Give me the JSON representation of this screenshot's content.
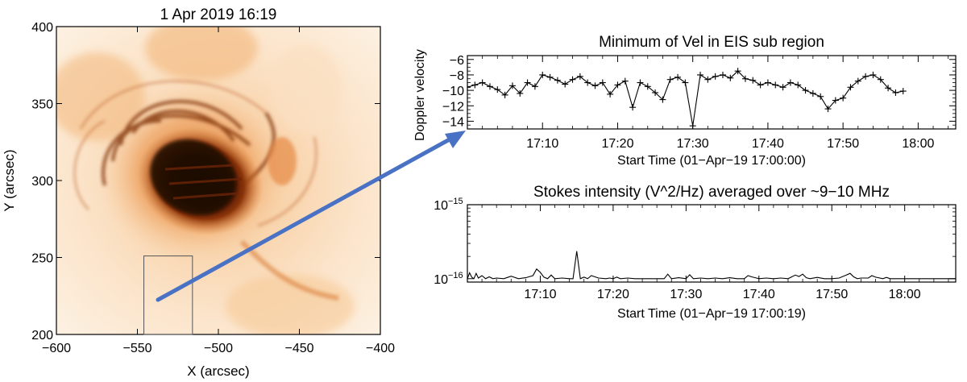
{
  "image_panel": {
    "title": "1 Apr 2019 16:19",
    "xlabel": "X (arcsec)",
    "ylabel": "Y (arcsec)",
    "xticks": [
      -600,
      -550,
      -500,
      -450,
      -400
    ],
    "yticks": [
      200,
      250,
      300,
      350,
      400
    ],
    "xlim": [
      -600,
      -400
    ],
    "ylim": [
      200,
      400
    ],
    "subregion": {
      "x0": -546,
      "x1": -516,
      "y0": 200,
      "y1": 251
    },
    "colors": {
      "arrow": "#4a72c4",
      "map_light": "#fdf1e2",
      "map_mid": "#f0a25c",
      "map_dark": "#1c0600",
      "box": "#555555"
    }
  },
  "chart_data": [
    {
      "type": "line",
      "title": "Minimum of Vel in EIS sub region",
      "xlabel": "Start Time (01−Apr−19 17:00:00)",
      "ylabel": "Doppler velocity",
      "xlim": [
        0,
        65
      ],
      "ylim": [
        -15,
        -5.5
      ],
      "xtick_values": [
        10,
        20,
        30,
        40,
        50,
        60
      ],
      "xtick_labels": [
        "17:10",
        "17:20",
        "17:30",
        "17:40",
        "17:50",
        "18:00"
      ],
      "ytick_values": [
        -6,
        -8,
        -10,
        -12,
        -14
      ],
      "ytick_labels": [
        "−6",
        "−8",
        "−10",
        "−12",
        "−14"
      ],
      "marker": "+",
      "series": [
        {
          "name": "Doppler velocity",
          "x": [
            0,
            1,
            2,
            3,
            4,
            5,
            6,
            7,
            8,
            9,
            10,
            11,
            12,
            13,
            14,
            15,
            16,
            17,
            18,
            19,
            20,
            21,
            22,
            23,
            24,
            25,
            26,
            27,
            28,
            29,
            30,
            31,
            32,
            33,
            34,
            35,
            36,
            37,
            38,
            39,
            40,
            41,
            42,
            43,
            44,
            45,
            46,
            47,
            48,
            49,
            50,
            51,
            52,
            53,
            54,
            55,
            56,
            57,
            58
          ],
          "y": [
            -9.6,
            -9.3,
            -9.0,
            -9.5,
            -9.9,
            -10.6,
            -9.4,
            -10.4,
            -9.0,
            -9.5,
            -8.0,
            -8.3,
            -8.7,
            -9.2,
            -8.6,
            -8.2,
            -9.0,
            -9.4,
            -9.0,
            -10.5,
            -9.3,
            -8.8,
            -12.2,
            -9.0,
            -9.5,
            -10.3,
            -11.2,
            -8.6,
            -8.3,
            -9.0,
            -14.6,
            -8.0,
            -8.6,
            -8.2,
            -8.0,
            -8.4,
            -7.5,
            -8.5,
            -8.7,
            -9.3,
            -9.0,
            -9.3,
            -9.6,
            -9.0,
            -9.3,
            -10.0,
            -10.4,
            -10.8,
            -12.4,
            -11.3,
            -11.0,
            -9.6,
            -8.8,
            -8.2,
            -8.0,
            -8.6,
            -9.7,
            -10.3,
            -10.1
          ]
        }
      ]
    },
    {
      "type": "line",
      "title": "Stokes intensity (V^2/Hz) averaged over ~9−10 MHz",
      "xlabel": "Start Time (01−Apr−19 17:00:19)",
      "ylabel": "",
      "xlim": [
        0,
        67
      ],
      "yscale": "log",
      "ylim": [
        9e-17,
        1e-15
      ],
      "xtick_values": [
        10,
        20,
        30,
        40,
        50,
        60
      ],
      "xtick_labels": [
        "17:10",
        "17:20",
        "17:30",
        "17:40",
        "17:50",
        "18:00"
      ],
      "ytick_labels": [
        "10",
        "10"
      ],
      "ytick_exponents": [
        "−16",
        "−15"
      ],
      "series": [
        {
          "name": "Stokes intensity",
          "x": [
            0.0,
            0.3,
            0.6,
            0.9,
            1.2,
            1.5,
            2.0,
            2.5,
            3.0,
            3.5,
            4.0,
            5.0,
            6.0,
            7.0,
            8.0,
            9.0,
            9.5,
            10.0,
            10.5,
            11.0,
            11.5,
            12.0,
            13.0,
            14.0,
            14.5,
            15.0,
            15.5,
            16.0,
            16.5,
            17.0,
            18.0,
            19.0,
            19.5,
            20.0,
            20.5,
            21.0,
            22.0,
            23.0,
            24.0,
            25.0,
            26.0,
            27.0,
            27.5,
            28.0,
            29.0,
            30.0,
            30.5,
            31.0,
            32.0,
            33.0,
            34.0,
            35.0,
            36.0,
            37.0,
            38.0,
            38.5,
            39.0,
            39.5,
            40.0,
            41.0,
            42.0,
            43.0,
            44.0,
            45.0,
            45.5,
            46.0,
            46.5,
            47.0,
            48.0,
            49.0,
            50.0,
            51.0,
            52.0,
            52.5,
            53.0,
            53.5,
            54.0,
            55.0,
            55.5,
            56.0,
            57.0,
            57.5,
            58.0,
            59.0,
            60.0,
            61.0,
            62.0,
            63.0,
            64.0,
            65.0,
            66.0,
            67.0
          ],
          "y": [
            1e-16,
            1.2e-16,
            1.05e-16,
            1e-16,
            1.18e-16,
            1.02e-16,
            1.1e-16,
            1e-16,
            1.06e-16,
            1e-16,
            1.02e-16,
            1e-16,
            1.08e-16,
            1e-16,
            1.03e-16,
            1.1e-16,
            1.35e-16,
            1.22e-16,
            1.05e-16,
            1e-16,
            1.12e-16,
            1e-16,
            1.02e-16,
            1e-16,
            1e-16,
            2.35e-16,
            1e-16,
            1.05e-16,
            1e-16,
            1.1e-16,
            1.02e-16,
            1e-16,
            1.02e-16,
            1e-16,
            1.05e-16,
            1e-16,
            1.02e-16,
            1e-16,
            1e-16,
            1e-16,
            1e-16,
            1e-16,
            1.15e-16,
            1e-16,
            1.03e-16,
            1e-16,
            1.13e-16,
            1e-16,
            1.02e-16,
            1e-16,
            1.02e-16,
            1e-16,
            1.03e-16,
            1e-16,
            1e-16,
            1.1e-16,
            1.06e-16,
            1.03e-16,
            1e-16,
            1.02e-16,
            1e-16,
            1.02e-16,
            1e-16,
            1.12e-16,
            1.07e-16,
            1.15e-16,
            1.03e-16,
            1e-16,
            1.04e-16,
            1e-16,
            1e-16,
            1.02e-16,
            1.12e-16,
            1.18e-16,
            1.06e-16,
            1e-16,
            1.02e-16,
            1.02e-16,
            1.1e-16,
            1.05e-16,
            1e-16,
            1.04e-16,
            1e-16,
            1e-16,
            1e-16,
            1e-16,
            1e-16,
            1e-16,
            1e-16,
            1e-16,
            1e-16,
            1e-16
          ]
        }
      ]
    }
  ]
}
